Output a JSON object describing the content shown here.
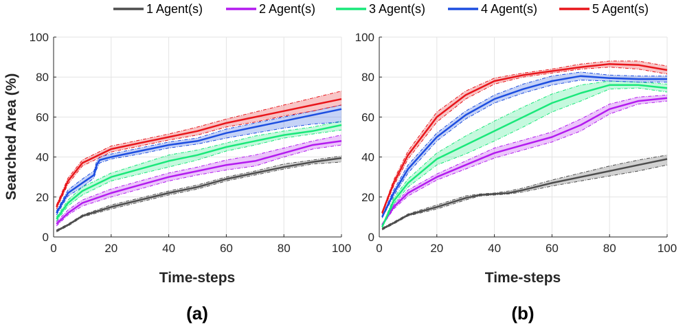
{
  "chart_data": [
    {
      "type": "line",
      "panel_label": "(a)",
      "xlabel": "Time-steps",
      "ylabel": "Searched Area (%)",
      "xlim": [
        0,
        100
      ],
      "ylim": [
        0,
        100
      ],
      "xticks": [
        "0",
        "20",
        "40",
        "60",
        "80",
        "100"
      ],
      "yticks": [
        "0",
        "20",
        "40",
        "60",
        "80",
        "100"
      ],
      "grid": true,
      "series": [
        {
          "name": "1 Agent(s)",
          "color": "#4d4d4d",
          "x": [
            1,
            5,
            10,
            20,
            30,
            40,
            50,
            60,
            70,
            80,
            90,
            100
          ],
          "mean": [
            3,
            6,
            10.5,
            15,
            18.5,
            22,
            25,
            29,
            32,
            35,
            37.5,
            39.5
          ],
          "lower": [
            2.5,
            5.5,
            10,
            14,
            17.5,
            21,
            24,
            28,
            31,
            34,
            36.5,
            37.5
          ],
          "upper": [
            3.5,
            6.5,
            11,
            16,
            19.5,
            23,
            26,
            30,
            33,
            36.5,
            38.5,
            40.5
          ]
        },
        {
          "name": "2 Agent(s)",
          "color": "#b31bef",
          "x": [
            1,
            5,
            10,
            20,
            30,
            40,
            50,
            60,
            70,
            80,
            90,
            100
          ],
          "mean": [
            6.5,
            12,
            17,
            22,
            26,
            30,
            33,
            36,
            38,
            42,
            46,
            48
          ],
          "lower": [
            5.5,
            11,
            15.5,
            20,
            24,
            28,
            31,
            33.5,
            35.5,
            40,
            44,
            46
          ],
          "upper": [
            7.5,
            13.5,
            18.5,
            24,
            28,
            32,
            35,
            38.5,
            41,
            44.5,
            48,
            51
          ]
        },
        {
          "name": "3 Agent(s)",
          "color": "#19e87a",
          "x": [
            1,
            5,
            10,
            20,
            30,
            40,
            50,
            60,
            70,
            80,
            90,
            100
          ],
          "mean": [
            9,
            17,
            23,
            30,
            34,
            38,
            41,
            45,
            48,
            51,
            53,
            56
          ],
          "lower": [
            8,
            15.5,
            21,
            28,
            31.5,
            35,
            38.5,
            43,
            46,
            49.5,
            51.5,
            53.5
          ],
          "upper": [
            10,
            18.5,
            25,
            32,
            36.5,
            41,
            43.5,
            47,
            50.5,
            53,
            55,
            58
          ]
        },
        {
          "name": "4 Agent(s)",
          "color": "#1d4ee0",
          "x": [
            1,
            5,
            10,
            14,
            15,
            16,
            20,
            30,
            40,
            50,
            60,
            70,
            80,
            90,
            100
          ],
          "mean": [
            12,
            22,
            27,
            31,
            36,
            38.5,
            40,
            43,
            46,
            48,
            52,
            55,
            58,
            61,
            64
          ],
          "lower": [
            11,
            20.5,
            25,
            29.5,
            34,
            37,
            39,
            41.5,
            44.5,
            46.5,
            49.5,
            52,
            54.5,
            56.5,
            57.5
          ],
          "upper": [
            13,
            23.5,
            29,
            33,
            38,
            40,
            41.5,
            44.5,
            47.5,
            49.5,
            54,
            57,
            60,
            63,
            66
          ]
        },
        {
          "name": "5 Agent(s)",
          "color": "#e8161b",
          "x": [
            1,
            5,
            10,
            20,
            30,
            40,
            50,
            60,
            70,
            80,
            90,
            100
          ],
          "mean": [
            15,
            28,
            37,
            44,
            47,
            50,
            53,
            57,
            60,
            63,
            66,
            69
          ],
          "lower": [
            14,
            26.5,
            35.5,
            42.5,
            45.5,
            48.5,
            51,
            55,
            57.5,
            60.5,
            63,
            66
          ],
          "upper": [
            16,
            29.5,
            38.5,
            45.5,
            48.5,
            51.5,
            55,
            59,
            62.5,
            66,
            69.5,
            73
          ]
        }
      ]
    },
    {
      "type": "line",
      "panel_label": "(b)",
      "xlabel": "Time-steps",
      "ylabel": "",
      "xlim": [
        0,
        100
      ],
      "ylim": [
        0,
        100
      ],
      "xticks": [
        "0",
        "20",
        "40",
        "60",
        "80",
        "100"
      ],
      "yticks": [
        "0",
        "20",
        "40",
        "60",
        "80",
        "100"
      ],
      "grid": true,
      "series": [
        {
          "name": "1 Agent(s)",
          "color": "#4d4d4d",
          "x": [
            1,
            5,
            10,
            20,
            30,
            35,
            40,
            45,
            50,
            60,
            70,
            80,
            90,
            100
          ],
          "mean": [
            4,
            7,
            11,
            15,
            19.5,
            21,
            21.5,
            22,
            23.5,
            27,
            30,
            33,
            36,
            39
          ],
          "lower": [
            3.5,
            6.5,
            10.5,
            14,
            18.5,
            20.5,
            21,
            21.5,
            22.5,
            25.5,
            28,
            30.5,
            33,
            36
          ],
          "upper": [
            4.5,
            7.5,
            11.5,
            16,
            20.5,
            21.5,
            22,
            23,
            24.5,
            28.5,
            32,
            35.5,
            38.5,
            41
          ]
        },
        {
          "name": "2 Agent(s)",
          "color": "#b31bef",
          "x": [
            1,
            5,
            10,
            20,
            30,
            40,
            50,
            60,
            70,
            80,
            90,
            100
          ],
          "mean": [
            6,
            15,
            22,
            30,
            36,
            42,
            46,
            50,
            56,
            64,
            68,
            69.5
          ],
          "lower": [
            5.5,
            14,
            20.5,
            28.5,
            34,
            39.5,
            43.5,
            47.5,
            53,
            61.5,
            66.5,
            68
          ],
          "upper": [
            6.5,
            16,
            23.5,
            31.5,
            38,
            44.5,
            48.5,
            52.5,
            59,
            66.5,
            70,
            71
          ]
        },
        {
          "name": "3 Agent(s)",
          "color": "#19e87a",
          "x": [
            1,
            5,
            10,
            20,
            30,
            40,
            50,
            60,
            70,
            80,
            90,
            100
          ],
          "mean": [
            5,
            18,
            27,
            39,
            46,
            53,
            60,
            67,
            72,
            76,
            76,
            74.5
          ],
          "lower": [
            4.5,
            16.5,
            25,
            36,
            41.5,
            48,
            55,
            62.5,
            68,
            74,
            74.5,
            72.5
          ],
          "upper": [
            5.5,
            19.5,
            29,
            42,
            50.5,
            58,
            65,
            71.5,
            76,
            78,
            77.5,
            76.5
          ]
        },
        {
          "name": "4 Agent(s)",
          "color": "#1d4ee0",
          "x": [
            1,
            5,
            10,
            20,
            30,
            40,
            50,
            60,
            70,
            80,
            90,
            100
          ],
          "mean": [
            10,
            22,
            34,
            50,
            61,
            69,
            74,
            78,
            80.5,
            79.5,
            79,
            79
          ],
          "lower": [
            9.5,
            20.5,
            32,
            48,
            59,
            67,
            72,
            76,
            78.5,
            78,
            77.5,
            77.5
          ],
          "upper": [
            10.5,
            23.5,
            36,
            52,
            63,
            71,
            76.5,
            80.5,
            82.5,
            81,
            80.5,
            80.5
          ]
        },
        {
          "name": "5 Agent(s)",
          "color": "#e8161b",
          "x": [
            1,
            5,
            10,
            20,
            30,
            40,
            50,
            60,
            70,
            80,
            90,
            100
          ],
          "mean": [
            12,
            27,
            41,
            60,
            71,
            78,
            81,
            83,
            85,
            86.5,
            86,
            83.5
          ],
          "lower": [
            11.5,
            25.5,
            39,
            57.5,
            69,
            76.5,
            80,
            82,
            84,
            85,
            84,
            81.5
          ],
          "upper": [
            12.5,
            28.5,
            43,
            62.5,
            73,
            79.5,
            82,
            84,
            86.5,
            88,
            88,
            85.5
          ]
        }
      ]
    }
  ],
  "legend": {
    "placement": "top",
    "items": [
      "1 Agent(s)",
      "2 Agent(s)",
      "3 Agent(s)",
      "4 Agent(s)",
      "5 Agent(s)"
    ],
    "colors": [
      "#4d4d4d",
      "#b31bef",
      "#19e87a",
      "#1d4ee0",
      "#e8161b"
    ]
  }
}
